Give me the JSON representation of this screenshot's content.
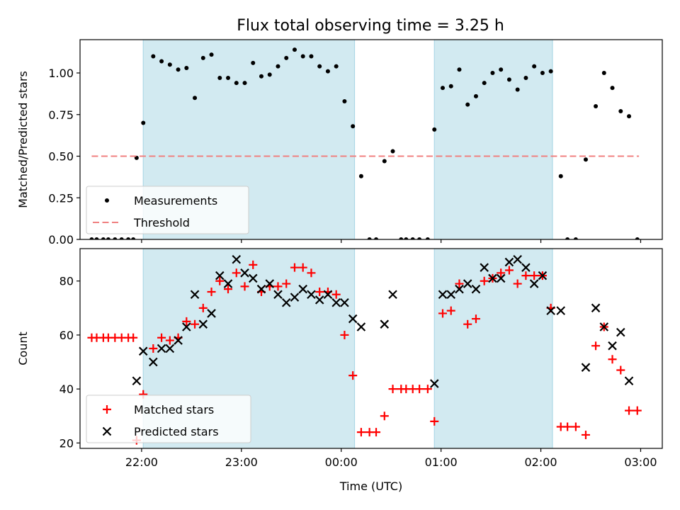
{
  "title": "Flux total observing time = 3.25 h",
  "colors": {
    "observing_band": "#add8e6",
    "measurements": "#000000",
    "threshold": "#f08080",
    "matched": "#ff0000",
    "predicted": "#000000"
  },
  "chart_data": [
    {
      "type": "scatter",
      "panel": "top",
      "ylabel": "Matched/Predicted stars",
      "xlabel": "",
      "ylim": [
        0,
        1.2
      ],
      "yticks": [
        0.0,
        0.25,
        0.5,
        0.75,
        1.0
      ],
      "ytick_labels": [
        "0.00",
        "0.25",
        "0.50",
        "0.75",
        "1.00"
      ],
      "xlim": [
        "21:23",
        "03:13"
      ],
      "xticks": [
        "22:00",
        "23:00",
        "00:00",
        "01:00",
        "02:00",
        "03:00"
      ],
      "xtick_labels": [
        "",
        "",
        "",
        "",
        "",
        ""
      ],
      "grid": false,
      "legend": {
        "placement": "lower-left",
        "entries": [
          "Measurements",
          "Threshold"
        ]
      },
      "shaded_regions": [
        [
          "22:01",
          "00:08"
        ],
        [
          "00:56",
          "02:07"
        ]
      ],
      "series": [
        {
          "name": "Measurements",
          "marker": "dot",
          "points": [
            [
              "21:30",
              0.0
            ],
            [
              "21:33",
              0.0
            ],
            [
              "21:37",
              0.0
            ],
            [
              "21:40",
              0.0
            ],
            [
              "21:44",
              0.0
            ],
            [
              "21:48",
              0.0
            ],
            [
              "21:52",
              0.0
            ],
            [
              "21:55",
              0.0
            ],
            [
              "21:57",
              0.49
            ],
            [
              "22:01",
              0.7
            ],
            [
              "22:07",
              1.1
            ],
            [
              "22:12",
              1.07
            ],
            [
              "22:17",
              1.05
            ],
            [
              "22:22",
              1.02
            ],
            [
              "22:27",
              1.03
            ],
            [
              "22:32",
              0.85
            ],
            [
              "22:37",
              1.09
            ],
            [
              "22:42",
              1.11
            ],
            [
              "22:47",
              0.97
            ],
            [
              "22:52",
              0.97
            ],
            [
              "22:57",
              0.94
            ],
            [
              "23:02",
              0.94
            ],
            [
              "23:07",
              1.06
            ],
            [
              "23:12",
              0.98
            ],
            [
              "23:17",
              0.99
            ],
            [
              "23:22",
              1.04
            ],
            [
              "23:27",
              1.09
            ],
            [
              "23:32",
              1.14
            ],
            [
              "23:37",
              1.1
            ],
            [
              "23:42",
              1.1
            ],
            [
              "23:47",
              1.04
            ],
            [
              "23:52",
              1.01
            ],
            [
              "23:57",
              1.04
            ],
            [
              "00:02",
              0.83
            ],
            [
              "00:07",
              0.68
            ],
            [
              "00:12",
              0.38
            ],
            [
              "00:17",
              0.0
            ],
            [
              "00:21",
              0.0
            ],
            [
              "00:26",
              0.47
            ],
            [
              "00:31",
              0.53
            ],
            [
              "00:36",
              0.0
            ],
            [
              "00:39",
              0.0
            ],
            [
              "00:43",
              0.0
            ],
            [
              "00:47",
              0.0
            ],
            [
              "00:52",
              0.0
            ],
            [
              "00:56",
              0.66
            ],
            [
              "01:01",
              0.91
            ],
            [
              "01:06",
              0.92
            ],
            [
              "01:11",
              1.02
            ],
            [
              "01:16",
              0.81
            ],
            [
              "01:21",
              0.86
            ],
            [
              "01:26",
              0.94
            ],
            [
              "01:31",
              1.0
            ],
            [
              "01:36",
              1.02
            ],
            [
              "01:41",
              0.96
            ],
            [
              "01:46",
              0.9
            ],
            [
              "01:51",
              0.97
            ],
            [
              "01:56",
              1.04
            ],
            [
              "02:01",
              1.0
            ],
            [
              "02:06",
              1.01
            ],
            [
              "02:12",
              0.38
            ],
            [
              "02:16",
              0.0
            ],
            [
              "02:21",
              0.0
            ],
            [
              "02:27",
              0.48
            ],
            [
              "02:33",
              0.8
            ],
            [
              "02:38",
              1.0
            ],
            [
              "02:43",
              0.91
            ],
            [
              "02:48",
              0.77
            ],
            [
              "02:53",
              0.74
            ],
            [
              "02:58",
              0.0
            ]
          ]
        },
        {
          "name": "Threshold",
          "style": "dashed",
          "points": [
            [
              "21:30",
              0.5
            ],
            [
              "02:59",
              0.5
            ]
          ]
        }
      ]
    },
    {
      "type": "scatter",
      "panel": "bottom",
      "xlabel": "Time (UTC)",
      "ylabel": "Count",
      "ylim": [
        18,
        92
      ],
      "yticks": [
        20,
        40,
        60,
        80
      ],
      "ytick_labels": [
        "20",
        "40",
        "60",
        "80"
      ],
      "xlim": [
        "21:23",
        "03:13"
      ],
      "xticks": [
        "22:00",
        "23:00",
        "00:00",
        "01:00",
        "02:00",
        "03:00"
      ],
      "xtick_labels": [
        "22:00",
        "23:00",
        "00:00",
        "01:00",
        "02:00",
        "03:00"
      ],
      "grid": false,
      "legend": {
        "placement": "lower-left",
        "entries": [
          "Matched stars",
          "Predicted stars"
        ]
      },
      "shaded_regions": [
        [
          "22:01",
          "00:08"
        ],
        [
          "00:56",
          "02:07"
        ]
      ],
      "series": [
        {
          "name": "Matched stars",
          "marker": "plus",
          "points": [
            [
              "21:30",
              59
            ],
            [
              "21:33",
              59
            ],
            [
              "21:37",
              59
            ],
            [
              "21:40",
              59
            ],
            [
              "21:44",
              59
            ],
            [
              "21:48",
              59
            ],
            [
              "21:52",
              59
            ],
            [
              "21:55",
              59
            ],
            [
              "21:57",
              21
            ],
            [
              "22:01",
              38
            ],
            [
              "22:07",
              55
            ],
            [
              "22:12",
              59
            ],
            [
              "22:17",
              58
            ],
            [
              "22:22",
              59
            ],
            [
              "22:27",
              65
            ],
            [
              "22:32",
              64
            ],
            [
              "22:37",
              70
            ],
            [
              "22:42",
              76
            ],
            [
              "22:47",
              80
            ],
            [
              "22:52",
              77
            ],
            [
              "22:57",
              83
            ],
            [
              "23:02",
              78
            ],
            [
              "23:07",
              86
            ],
            [
              "23:12",
              76
            ],
            [
              "23:17",
              78
            ],
            [
              "23:22",
              78
            ],
            [
              "23:27",
              79
            ],
            [
              "23:32",
              85
            ],
            [
              "23:37",
              85
            ],
            [
              "23:42",
              83
            ],
            [
              "23:47",
              76
            ],
            [
              "23:52",
              76
            ],
            [
              "23:57",
              75
            ],
            [
              "00:02",
              60
            ],
            [
              "00:07",
              45
            ],
            [
              "00:12",
              24
            ],
            [
              "00:17",
              24
            ],
            [
              "00:21",
              24
            ],
            [
              "00:26",
              30
            ],
            [
              "00:31",
              40
            ],
            [
              "00:36",
              40
            ],
            [
              "00:39",
              40
            ],
            [
              "00:43",
              40
            ],
            [
              "00:47",
              40
            ],
            [
              "00:52",
              40
            ],
            [
              "00:56",
              28
            ],
            [
              "01:01",
              68
            ],
            [
              "01:06",
              69
            ],
            [
              "01:11",
              79
            ],
            [
              "01:16",
              64
            ],
            [
              "01:21",
              66
            ],
            [
              "01:26",
              80
            ],
            [
              "01:31",
              81
            ],
            [
              "01:36",
              83
            ],
            [
              "01:41",
              84
            ],
            [
              "01:46",
              79
            ],
            [
              "01:51",
              82
            ],
            [
              "01:56",
              82
            ],
            [
              "02:01",
              82
            ],
            [
              "02:06",
              70
            ],
            [
              "02:12",
              26
            ],
            [
              "02:16",
              26
            ],
            [
              "02:21",
              26
            ],
            [
              "02:27",
              23
            ],
            [
              "02:33",
              56
            ],
            [
              "02:38",
              63
            ],
            [
              "02:43",
              51
            ],
            [
              "02:48",
              47
            ],
            [
              "02:53",
              32
            ],
            [
              "02:58",
              32
            ]
          ]
        },
        {
          "name": "Predicted stars",
          "marker": "x",
          "points": [
            [
              "21:57",
              43
            ],
            [
              "22:01",
              54
            ],
            [
              "22:07",
              50
            ],
            [
              "22:12",
              55
            ],
            [
              "22:17",
              55
            ],
            [
              "22:22",
              58
            ],
            [
              "22:27",
              63
            ],
            [
              "22:32",
              75
            ],
            [
              "22:37",
              64
            ],
            [
              "22:42",
              68
            ],
            [
              "22:47",
              82
            ],
            [
              "22:52",
              79
            ],
            [
              "22:57",
              88
            ],
            [
              "23:02",
              83
            ],
            [
              "23:07",
              81
            ],
            [
              "23:12",
              77
            ],
            [
              "23:17",
              79
            ],
            [
              "23:22",
              75
            ],
            [
              "23:27",
              72
            ],
            [
              "23:32",
              74
            ],
            [
              "23:37",
              77
            ],
            [
              "23:42",
              75
            ],
            [
              "23:47",
              73
            ],
            [
              "23:52",
              75
            ],
            [
              "23:57",
              72
            ],
            [
              "00:02",
              72
            ],
            [
              "00:07",
              66
            ],
            [
              "00:12",
              63
            ],
            [
              "00:26",
              64
            ],
            [
              "00:31",
              75
            ],
            [
              "00:56",
              42
            ],
            [
              "01:01",
              75
            ],
            [
              "01:06",
              75
            ],
            [
              "01:11",
              77
            ],
            [
              "01:16",
              79
            ],
            [
              "01:21",
              77
            ],
            [
              "01:26",
              85
            ],
            [
              "01:31",
              81
            ],
            [
              "01:36",
              81
            ],
            [
              "01:41",
              87
            ],
            [
              "01:46",
              88
            ],
            [
              "01:51",
              85
            ],
            [
              "01:56",
              79
            ],
            [
              "02:01",
              82
            ],
            [
              "02:06",
              69
            ],
            [
              "02:12",
              69
            ],
            [
              "02:27",
              48
            ],
            [
              "02:33",
              70
            ],
            [
              "02:38",
              63
            ],
            [
              "02:43",
              56
            ],
            [
              "02:48",
              61
            ],
            [
              "02:53",
              43
            ]
          ]
        }
      ]
    }
  ]
}
